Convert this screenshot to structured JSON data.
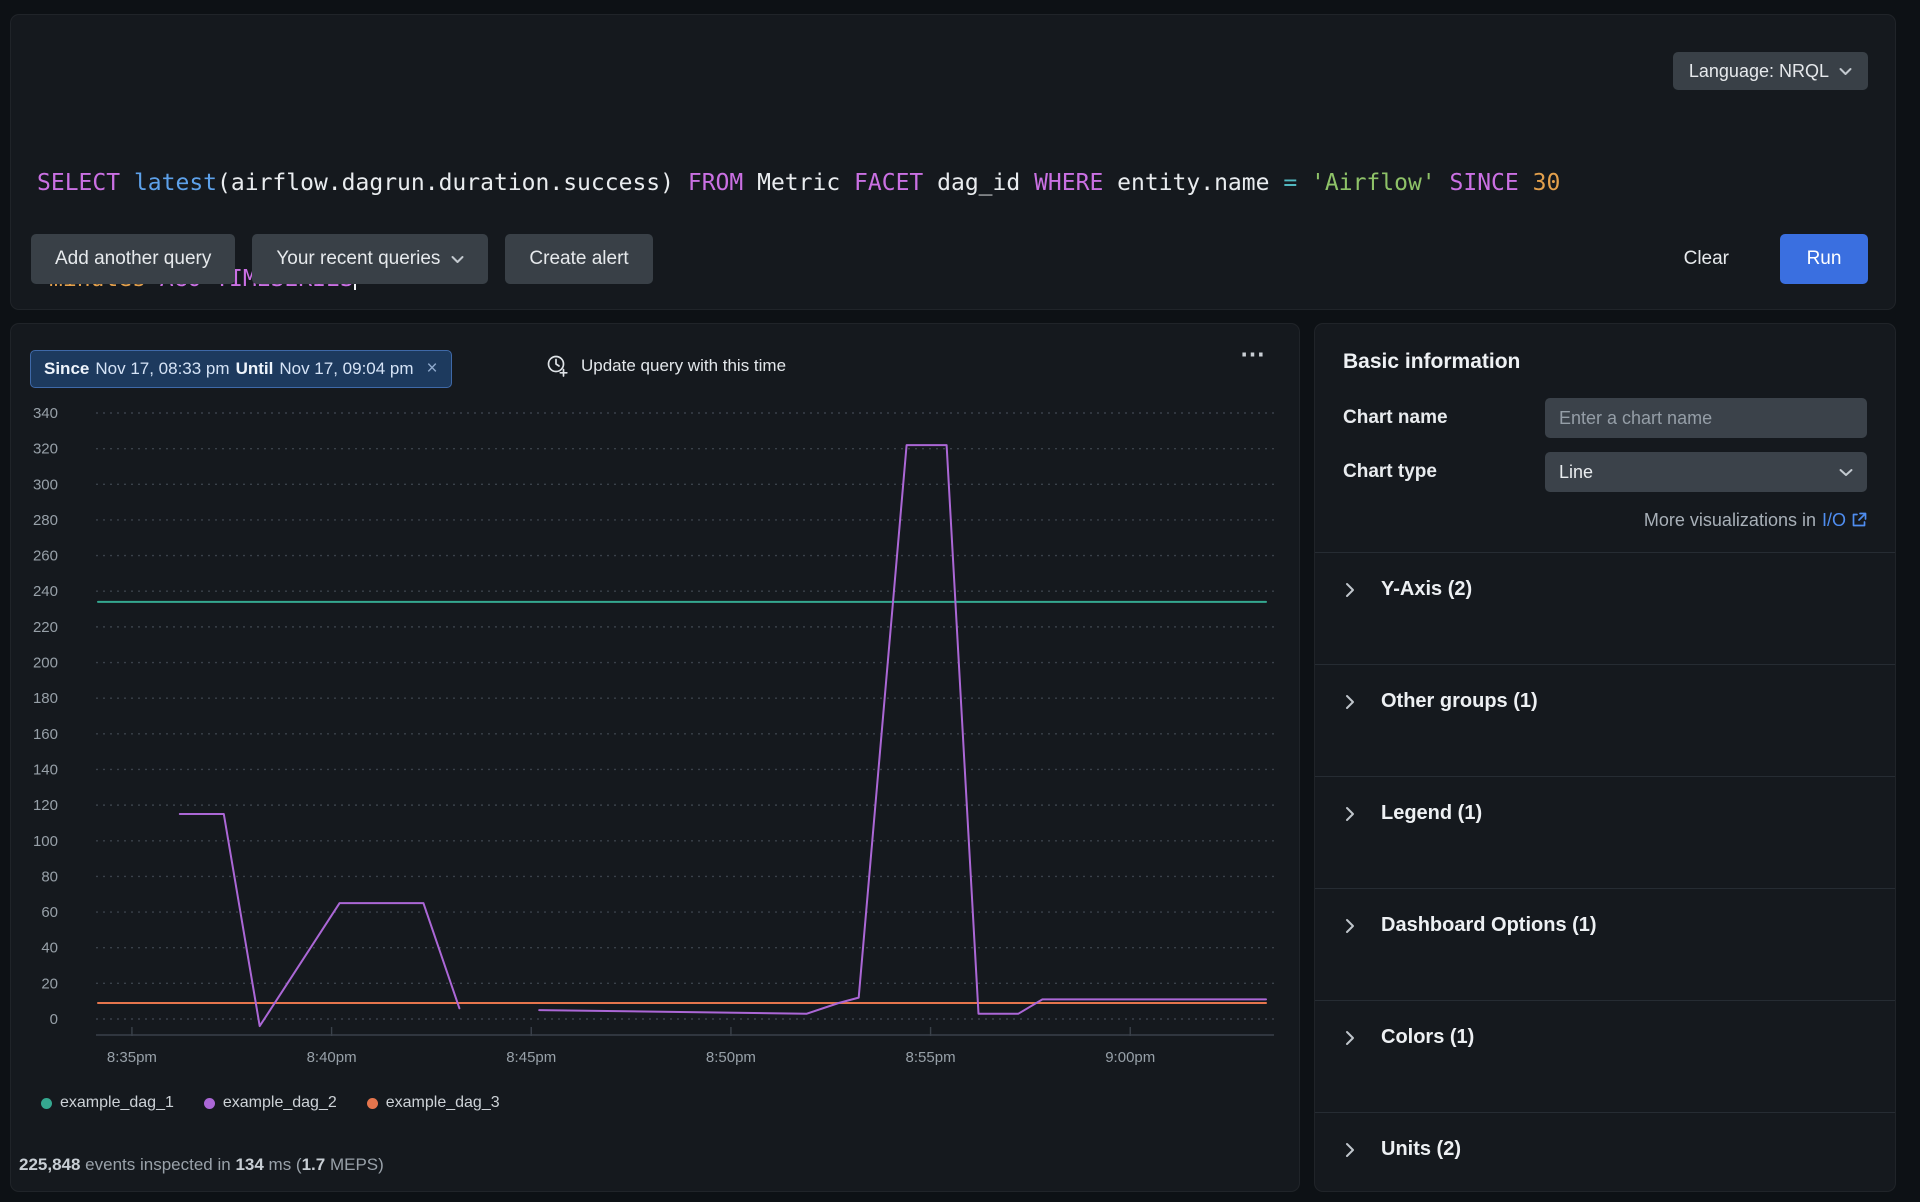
{
  "colors": {
    "page_bg": "#0d1115",
    "panel_bg": "#15191e",
    "run_button": "#3a6fe0",
    "badge_bg": "#1d3a5e",
    "badge_border": "#3f69a8",
    "link": "#4f8df0",
    "grid": "#3a414a",
    "axis_text": "#97a0a8"
  },
  "icons": {
    "close_glyph": "×",
    "more_glyph": "⋯"
  },
  "query_bar": {
    "language_label": "Language: NRQL",
    "lines": [
      [
        {
          "t": "SELECT ",
          "c": "kw"
        },
        {
          "t": "latest",
          "c": "fn"
        },
        {
          "t": "(airflow.dagrun.duration.success) ",
          "c": "plain"
        },
        {
          "t": "FROM ",
          "c": "kw"
        },
        {
          "t": "Metric ",
          "c": "plain"
        },
        {
          "t": "FACET ",
          "c": "kw"
        },
        {
          "t": "dag_id ",
          "c": "plain"
        },
        {
          "t": "WHERE ",
          "c": "kw"
        },
        {
          "t": "entity.name ",
          "c": "plain"
        },
        {
          "t": "= ",
          "c": "op"
        },
        {
          "t": "'Airflow' ",
          "c": "str"
        },
        {
          "t": "SINCE ",
          "c": "kw"
        },
        {
          "t": "30",
          "c": "num"
        }
      ],
      [
        {
          "t": "minutes ",
          "c": "num"
        },
        {
          "t": "AGO TIMESERIES",
          "c": "kw"
        }
      ]
    ],
    "buttons": {
      "add": "Add another query",
      "recent": "Your recent queries",
      "create_alert": "Create alert",
      "clear": "Clear",
      "run": "Run"
    }
  },
  "chart_header": {
    "since_label": "Since",
    "since_value": "Nov 17, 08:33 pm",
    "until_label": "Until",
    "until_value": "Nov 17, 09:04 pm",
    "update_label": "Update query with this time"
  },
  "chart_data": {
    "type": "line",
    "title": "",
    "xlabel": "",
    "ylabel": "",
    "x_unit": "minutes after 8:33pm",
    "x_range": [
      0.9,
      30.6
    ],
    "ylim": [
      0,
      340
    ],
    "y_tick_step": 20,
    "grid": "dotted-horizontal",
    "legend_position": "bottom-left",
    "x_ticks": [
      {
        "t": 2,
        "label": "8:35pm"
      },
      {
        "t": 7,
        "label": "8:40pm"
      },
      {
        "t": 12,
        "label": "8:45pm"
      },
      {
        "t": 17,
        "label": "8:50pm"
      },
      {
        "t": 22,
        "label": "8:55pm"
      },
      {
        "t": 27,
        "label": "9:00pm"
      }
    ],
    "series": [
      {
        "name": "example_dag_1",
        "color": "#35a890",
        "segments": [
          [
            [
              1.15,
              234
            ],
            [
              30.4,
              234
            ]
          ]
        ]
      },
      {
        "name": "example_dag_3",
        "color": "#e5754d",
        "segments": [
          [
            [
              1.15,
              9
            ],
            [
              30.4,
              9
            ]
          ]
        ]
      },
      {
        "name": "example_dag_2",
        "color": "#ab67d6",
        "segments": [
          [
            [
              3.2,
              115
            ],
            [
              4.3,
              115
            ],
            [
              5.2,
              -4
            ],
            [
              7.2,
              65
            ],
            [
              9.3,
              65
            ],
            [
              10.2,
              6
            ]
          ],
          [
            [
              12.2,
              5
            ],
            [
              18.9,
              3
            ],
            [
              19.7,
              9
            ],
            [
              20.2,
              12
            ],
            [
              21.4,
              322
            ],
            [
              22.4,
              322
            ],
            [
              23.2,
              3
            ],
            [
              24.2,
              3
            ],
            [
              24.8,
              11
            ],
            [
              30.4,
              11
            ]
          ]
        ]
      }
    ],
    "legend_order": [
      "example_dag_1",
      "example_dag_2",
      "example_dag_3"
    ]
  },
  "footer": {
    "segments": [
      {
        "t": "225,848",
        "b": true
      },
      {
        "t": " events inspected in ",
        "b": false
      },
      {
        "t": "134",
        "b": true
      },
      {
        "t": " ms (",
        "b": false
      },
      {
        "t": "1.7",
        "b": true
      },
      {
        "t": " MEPS)",
        "b": false
      }
    ]
  },
  "sidebar": {
    "title": "Basic information",
    "chart_name_label": "Chart name",
    "chart_name_placeholder": "Enter a chart name",
    "chart_type_label": "Chart type",
    "chart_type_value": "Line",
    "more_viz_text": "More visualizations in",
    "more_viz_link": "I/O",
    "sections": [
      "Y-Axis (2)",
      "Other groups (1)",
      "Legend (1)",
      "Dashboard Options (1)",
      "Colors (1)",
      "Units (2)"
    ]
  }
}
